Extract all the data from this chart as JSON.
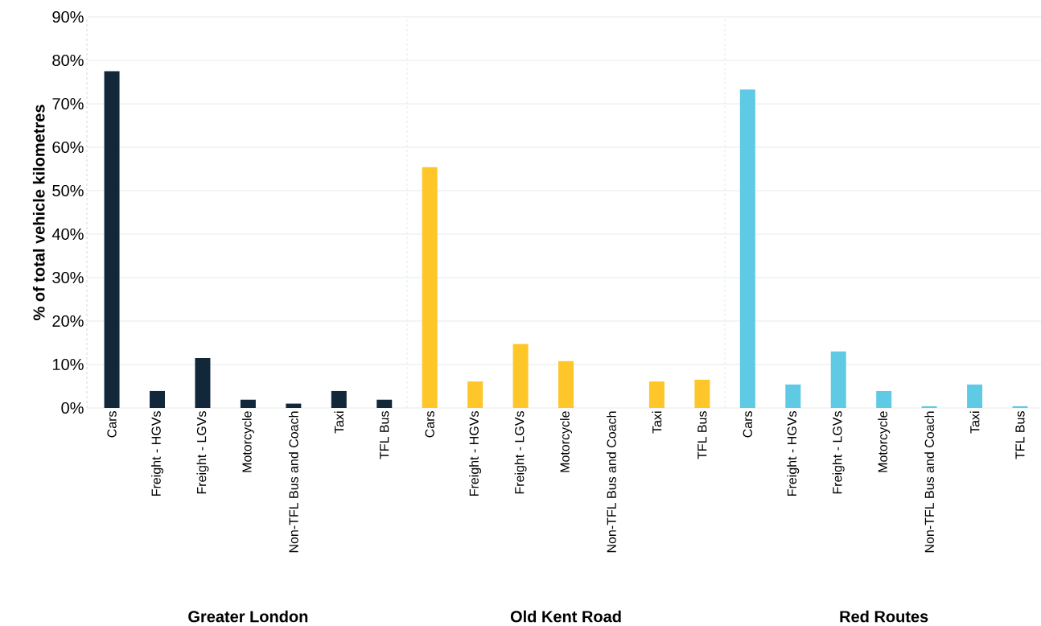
{
  "chart_data": {
    "type": "bar",
    "ylabel": "% of total vehicle kilometres",
    "categories": [
      "Cars",
      "Freight - HGVs",
      "Freight - LGVs",
      "Motorcycle",
      "Non-TFL Bus and Coach",
      "Taxi",
      "TFL Bus",
      "Cars",
      "Freight - HGVs",
      "Freight - LGVs",
      "Motorcycle",
      "Non-TFL Bus and Coach",
      "Taxi",
      "TFL Bus",
      "Cars",
      "Freight - HGVs",
      "Freight - LGVs",
      "Motorcycle",
      "Non-TFL Bus and Coach",
      "Taxi",
      "TFL Bus"
    ],
    "values": [
      77.5,
      3.9,
      11.5,
      1.9,
      1.0,
      3.9,
      1.9,
      55.4,
      6.1,
      14.7,
      10.8,
      0,
      6.1,
      6.5,
      73.3,
      5.4,
      13.0,
      3.9,
      0.4,
      5.4,
      0.4
    ],
    "colors": [
      "#13273b",
      "#13273b",
      "#13273b",
      "#13273b",
      "#13273b",
      "#13273b",
      "#13273b",
      "#ffc629",
      "#ffc629",
      "#ffc629",
      "#ffc629",
      "#ffc629",
      "#ffc629",
      "#ffc629",
      "#5fcae4",
      "#5fcae4",
      "#5fcae4",
      "#5fcae4",
      "#5fcae4",
      "#5fcae4",
      "#5fcae4"
    ],
    "ylim": [
      0,
      90
    ],
    "yticks": [
      {
        "value": 0,
        "label": "0%"
      },
      {
        "value": 10,
        "label": "10%"
      },
      {
        "value": 20,
        "label": "20%"
      },
      {
        "value": 30,
        "label": "30%"
      },
      {
        "value": 40,
        "label": "40%"
      },
      {
        "value": 50,
        "label": "50%"
      },
      {
        "value": 60,
        "label": "60%"
      },
      {
        "value": 70,
        "label": "70%"
      },
      {
        "value": 80,
        "label": "80%"
      },
      {
        "value": 90,
        "label": "90%"
      }
    ],
    "grid": "y",
    "annotations": [
      "Greater London",
      "Old Kent Road",
      "Red Routes"
    ]
  }
}
